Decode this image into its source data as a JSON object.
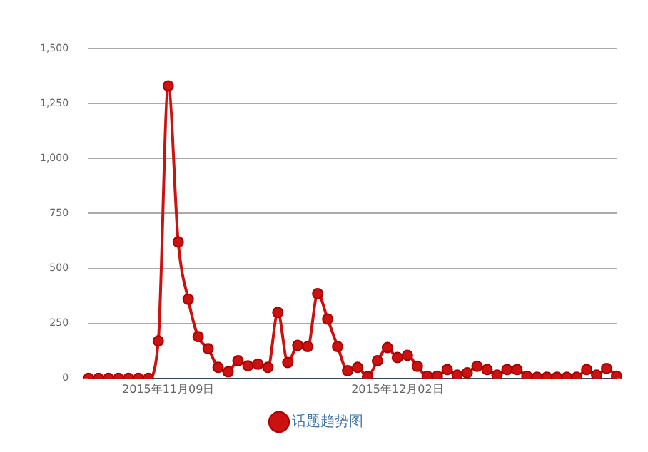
{
  "chart_data": {
    "type": "line",
    "categories": [
      null,
      null,
      null,
      null,
      null,
      null,
      null,
      null,
      "2015年11月09日",
      null,
      null,
      null,
      null,
      null,
      null,
      null,
      null,
      null,
      null,
      null,
      null,
      null,
      null,
      null,
      null,
      null,
      null,
      null,
      null,
      null,
      null,
      "2015年12月02日",
      null,
      null,
      null,
      null,
      null,
      null,
      null,
      null,
      null,
      null,
      null,
      null,
      null,
      null,
      null,
      null,
      null,
      null,
      null,
      null,
      null,
      null
    ],
    "series": [
      {
        "name": "话题趋势图",
        "color": "#cc1111",
        "values": [
          0,
          0,
          0,
          0,
          0,
          0,
          0,
          170,
          1330,
          620,
          360,
          190,
          135,
          50,
          30,
          80,
          57,
          65,
          50,
          300,
          72,
          150,
          145,
          385,
          270,
          145,
          35,
          50,
          8,
          80,
          140,
          95,
          105,
          55,
          10,
          10,
          40,
          15,
          25,
          55,
          40,
          15,
          40,
          40,
          10,
          5,
          5,
          5,
          5,
          5,
          40,
          15,
          45,
          10
        ]
      }
    ],
    "ylim": [
      0,
      1500
    ],
    "yticks": [
      0,
      {
        "value": 250,
        "label": "250"
      },
      {
        "value": 500,
        "label": "500"
      },
      {
        "value": 750,
        "label": "750"
      },
      {
        "value": 1000,
        "label": "1,000"
      },
      {
        "value": 1250,
        "label": "1,250"
      },
      {
        "value": 1500,
        "label": "1,500"
      }
    ],
    "grid": "y",
    "legend": "bottom",
    "marker": "circle",
    "line_style": "solid"
  }
}
